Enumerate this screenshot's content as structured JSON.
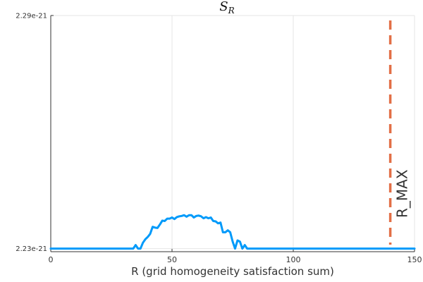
{
  "chart_data": {
    "type": "line",
    "title": "S",
    "title_subscript": "R",
    "xlabel": "R (grid homogeneity satisfaction sum)",
    "ylabel": "",
    "xlim": [
      0,
      150
    ],
    "ylim": [
      2.2292,
      2.29
    ],
    "x_ticks": [
      0,
      50,
      100,
      150
    ],
    "x_tick_labels": [
      "0",
      "50",
      "100",
      "150"
    ],
    "y_ticks": [
      2.23,
      2.29
    ],
    "y_tick_labels": [
      "2.23e-21",
      "2.29e-21"
    ],
    "y_unit_exponent": -21,
    "grid": true,
    "legend": "none",
    "colors": {
      "series": "#009AFA",
      "vline": "#E26F46",
      "grid": "#e6e6e6",
      "axis": "#333333"
    },
    "series": [
      {
        "x": [
          0,
          34,
          35,
          36,
          37,
          38,
          39,
          40,
          41,
          42,
          43,
          44,
          45,
          46,
          47,
          48,
          49,
          50,
          51,
          52,
          53,
          54,
          55,
          56,
          57,
          58,
          59,
          60,
          61,
          62,
          63,
          64,
          65,
          66,
          67,
          68,
          69,
          70,
          71,
          72,
          73,
          74,
          75,
          76,
          77,
          78,
          79,
          80,
          81,
          150
        ],
        "values": [
          2.23,
          2.23,
          2.2309,
          2.23,
          2.23,
          2.2315,
          2.2324,
          2.233,
          2.2338,
          2.2356,
          2.2354,
          2.2353,
          2.2362,
          2.2372,
          2.2371,
          2.2377,
          2.2377,
          2.238,
          2.2376,
          2.2381,
          2.2383,
          2.2384,
          2.2386,
          2.2382,
          2.2386,
          2.2386,
          2.238,
          2.2384,
          2.2385,
          2.2383,
          2.2378,
          2.2381,
          2.2378,
          2.238,
          2.2371,
          2.237,
          2.2365,
          2.2367,
          2.2342,
          2.2342,
          2.2347,
          2.2342,
          2.2318,
          2.23,
          2.2321,
          2.2318,
          2.23,
          2.2309,
          2.23,
          2.23
        ]
      }
    ],
    "vline": {
      "x": 140,
      "label": "R_MAX",
      "style": "dashed"
    }
  }
}
